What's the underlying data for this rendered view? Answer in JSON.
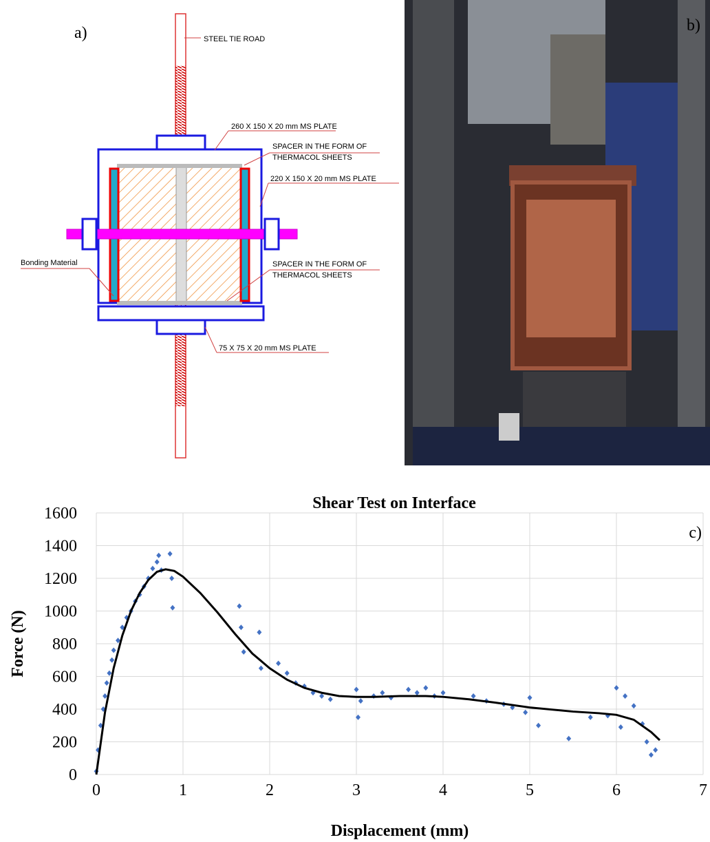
{
  "panels": {
    "a": {
      "label": "a)",
      "annotations": [
        "STEEL TIE ROAD",
        "260 X 150 X 20 mm MS PLATE",
        "SPACER IN THE FORM OF",
        "THERMACOL SHEETS",
        "220 X 150 X 20 mm MS PLATE",
        "Bonding Material",
        "SPACER IN THE FORM OF",
        "THERMACOL SHEETS",
        "75 X 75 X 20 mm MS PLATE"
      ]
    },
    "b": {
      "label": "b)"
    }
  },
  "chart_data": {
    "type": "scatter",
    "title": "Shear Test on Interface",
    "panel_label": "c)",
    "xlabel": "Displacement (mm)",
    "ylabel": "Force (N)",
    "xlim": [
      0,
      7
    ],
    "ylim": [
      0,
      1600
    ],
    "xticks": [
      0,
      1,
      2,
      3,
      4,
      5,
      6,
      7
    ],
    "yticks": [
      0,
      200,
      400,
      600,
      800,
      1000,
      1200,
      1400,
      1600
    ],
    "grid": true,
    "series": [
      {
        "type": "scatter",
        "color": "#4472c4",
        "x": [
          0,
          0.02,
          0.05,
          0.08,
          0.1,
          0.12,
          0.15,
          0.18,
          0.2,
          0.25,
          0.3,
          0.35,
          0.4,
          0.45,
          0.5,
          0.55,
          0.6,
          0.65,
          0.7,
          0.72,
          0.75,
          0.85,
          0.87,
          0.88,
          1.65,
          1.67,
          1.7,
          1.88,
          1.9,
          2.1,
          2.2,
          2.3,
          2.4,
          2.5,
          2.6,
          2.7,
          3.0,
          3.02,
          3.05,
          3.2,
          3.3,
          3.4,
          3.6,
          3.7,
          3.8,
          3.9,
          4.0,
          4.35,
          4.5,
          4.7,
          4.8,
          4.95,
          5.0,
          5.1,
          5.45,
          5.7,
          5.9,
          6.0,
          6.05,
          6.1,
          6.2,
          6.3,
          6.35,
          6.4,
          6.45
        ],
        "values": [
          20,
          150,
          300,
          400,
          480,
          560,
          620,
          700,
          760,
          820,
          900,
          960,
          1000,
          1060,
          1100,
          1150,
          1200,
          1260,
          1300,
          1340,
          1250,
          1350,
          1200,
          1020,
          1030,
          900,
          750,
          870,
          650,
          680,
          620,
          560,
          540,
          500,
          480,
          460,
          520,
          350,
          450,
          480,
          500,
          470,
          520,
          500,
          530,
          480,
          500,
          480,
          450,
          430,
          410,
          380,
          470,
          300,
          220,
          350,
          360,
          530,
          290,
          480,
          420,
          310,
          200,
          120,
          150
        ]
      },
      {
        "type": "line",
        "color": "#000000",
        "x": [
          0,
          0.1,
          0.2,
          0.3,
          0.4,
          0.5,
          0.6,
          0.7,
          0.8,
          0.9,
          1.0,
          1.2,
          1.4,
          1.6,
          1.8,
          2.0,
          2.2,
          2.4,
          2.6,
          2.8,
          3.0,
          3.2,
          3.5,
          3.8,
          4.0,
          4.3,
          4.6,
          5.0,
          5.5,
          5.8,
          6.0,
          6.2,
          6.4,
          6.5
        ],
        "values": [
          0,
          380,
          650,
          850,
          1000,
          1110,
          1190,
          1240,
          1255,
          1245,
          1210,
          1110,
          990,
          860,
          740,
          650,
          580,
          530,
          500,
          480,
          475,
          475,
          480,
          480,
          475,
          460,
          440,
          410,
          385,
          375,
          365,
          335,
          260,
          210
        ]
      }
    ]
  }
}
